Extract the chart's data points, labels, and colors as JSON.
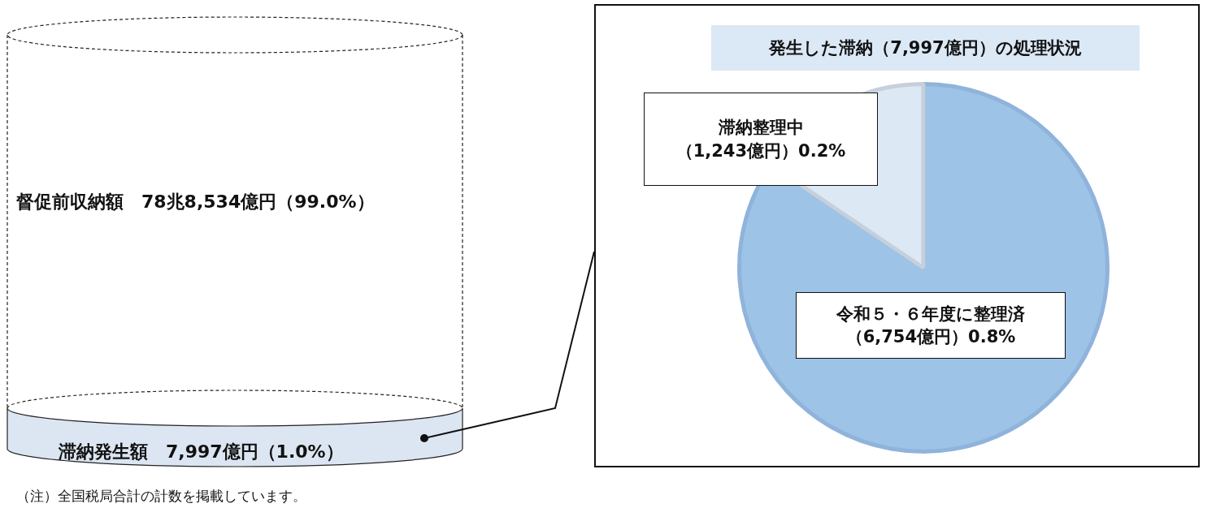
{
  "chart_data": [
    {
      "type": "other",
      "annotations": [
        "督促前収納額　78兆8,534億円（99.0%）",
        "滞納発生額　7,997億円（1.0%）",
        "（注）全国税局合計の計数を掲載しています。"
      ]
    },
    {
      "type": "pie",
      "title": "発生した滞納（7,997億円）の処理状況",
      "categories": [
        "令和５・６年度に整理済",
        "滞納整理中"
      ],
      "values": [
        6754,
        1243
      ],
      "colors": [
        "#9dc3e6",
        "#dde8f5"
      ],
      "value_labels": [
        "（6,754億円）0.8%",
        "（1,243億円）0.2%"
      ],
      "legend": false
    }
  ]
}
